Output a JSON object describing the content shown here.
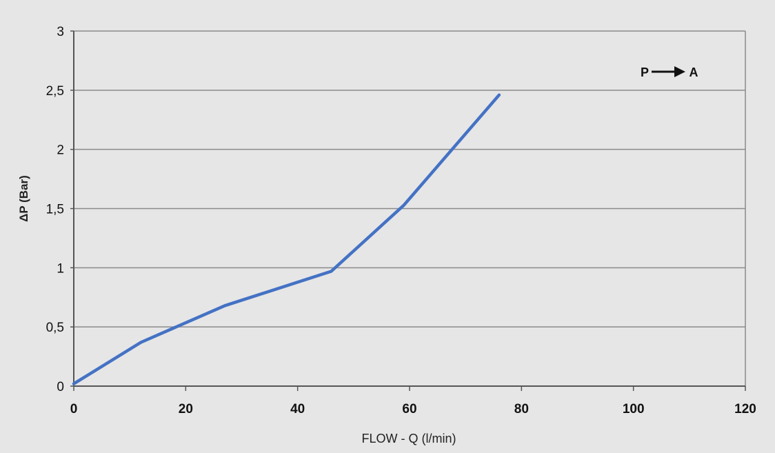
{
  "chart_data": {
    "type": "line",
    "title": "",
    "xlabel": "FLOW - Q (l/min)",
    "ylabel": "ΔP (Bar)",
    "xlim": [
      0,
      120
    ],
    "ylim": [
      0,
      3
    ],
    "x_ticks": [
      "0",
      "20",
      "40",
      "60",
      "80",
      "100",
      "120"
    ],
    "y_ticks": [
      "0",
      "0,5",
      "1",
      "1,5",
      "2",
      "2,5",
      "3"
    ],
    "grid": "horizontal",
    "annotation": {
      "left": "P",
      "right": "A",
      "arrow": "right-arrow-icon"
    },
    "series": [
      {
        "color": "#4472c4",
        "points": [
          {
            "x": 0,
            "y": 0.02
          },
          {
            "x": 12,
            "y": 0.37
          },
          {
            "x": 27,
            "y": 0.68
          },
          {
            "x": 46,
            "y": 0.97
          },
          {
            "x": 59,
            "y": 1.53
          },
          {
            "x": 76,
            "y": 2.46
          }
        ]
      }
    ]
  }
}
